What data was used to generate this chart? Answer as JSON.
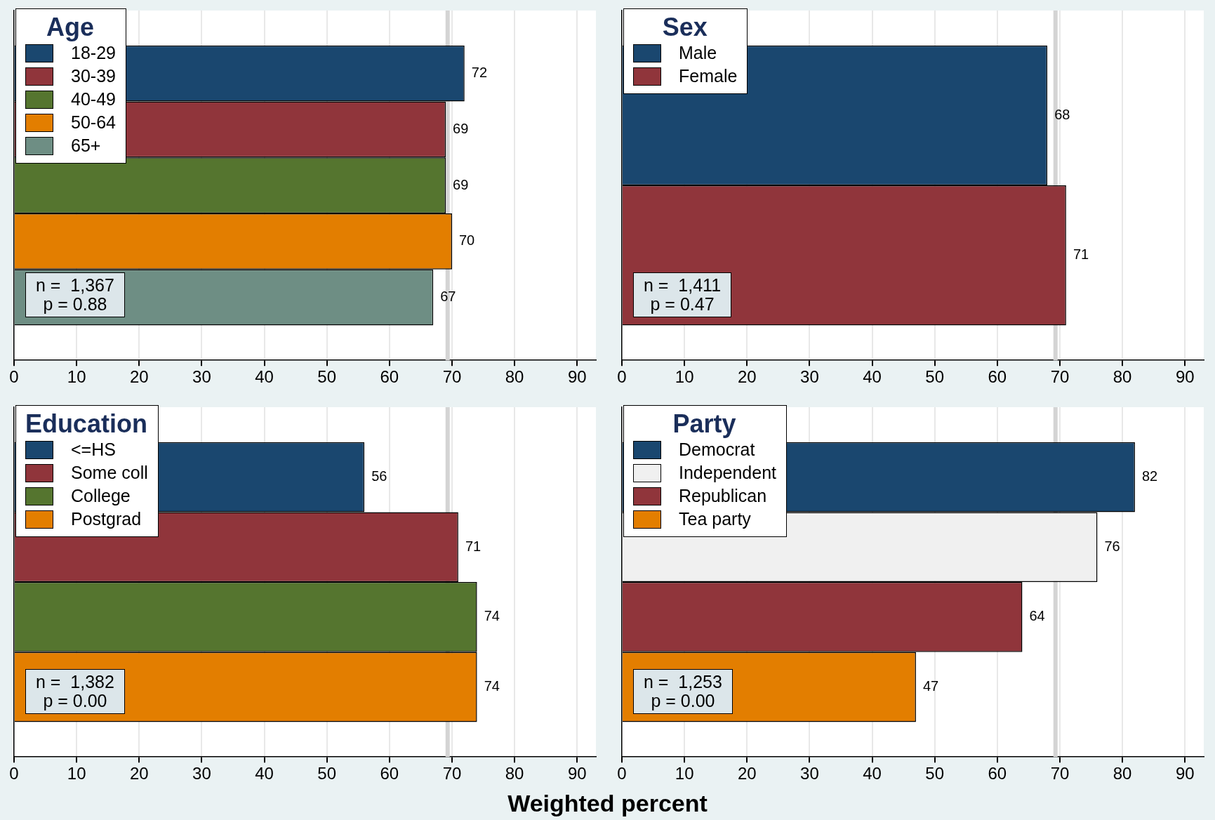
{
  "chart_data": [
    {
      "type": "bar",
      "orientation": "horizontal",
      "legend_title": "Age",
      "legend": "top left",
      "categories": [
        null
      ],
      "xlim": [
        0,
        93
      ],
      "xticks": [
        0,
        10,
        20,
        30,
        40,
        50,
        60,
        70,
        80,
        90
      ],
      "grid": "x",
      "data_labels": true,
      "ref_lines": [
        {
          "axis": "x",
          "value": 69.3,
          "color": "#d4d4d4"
        }
      ],
      "annotations": [
        "n =  1,367",
        "p = 0.88"
      ],
      "series": [
        {
          "name": "18-29",
          "color": "#1a476f",
          "values": [
            72
          ]
        },
        {
          "name": "30-39",
          "color": "#90353b",
          "values": [
            69
          ]
        },
        {
          "name": "40-49",
          "color": "#55752f",
          "values": [
            69
          ]
        },
        {
          "name": "50-64",
          "color": "#e37e00",
          "values": [
            70
          ]
        },
        {
          "name": "65+",
          "color": "#6e8e84",
          "values": [
            67
          ]
        }
      ]
    },
    {
      "type": "bar",
      "orientation": "horizontal",
      "legend_title": "Sex",
      "legend": "top left",
      "categories": [
        null
      ],
      "xlim": [
        0,
        93
      ],
      "xticks": [
        0,
        10,
        20,
        30,
        40,
        50,
        60,
        70,
        80,
        90
      ],
      "grid": "x",
      "data_labels": true,
      "ref_lines": [
        {
          "axis": "x",
          "value": 69.3,
          "color": "#d4d4d4"
        }
      ],
      "annotations": [
        "n =  1,411",
        "p = 0.47"
      ],
      "series": [
        {
          "name": "Male",
          "color": "#1a476f",
          "values": [
            68
          ]
        },
        {
          "name": "Female",
          "color": "#90353b",
          "values": [
            71
          ]
        }
      ]
    },
    {
      "type": "bar",
      "orientation": "horizontal",
      "legend_title": "Education",
      "legend": "top left",
      "categories": [
        null
      ],
      "xlim": [
        0,
        93
      ],
      "xticks": [
        0,
        10,
        20,
        30,
        40,
        50,
        60,
        70,
        80,
        90
      ],
      "grid": "x",
      "data_labels": true,
      "ref_lines": [
        {
          "axis": "x",
          "value": 69.3,
          "color": "#d4d4d4"
        }
      ],
      "annotations": [
        "n =  1,382",
        "p = 0.00"
      ],
      "xlabel": "Weighted percent",
      "series": [
        {
          "name": "<=HS",
          "color": "#1a476f",
          "values": [
            56
          ]
        },
        {
          "name": "Some coll",
          "color": "#90353b",
          "values": [
            71
          ]
        },
        {
          "name": "College",
          "color": "#55752f",
          "values": [
            74
          ]
        },
        {
          "name": "Postgrad",
          "color": "#e37e00",
          "values": [
            74
          ]
        }
      ]
    },
    {
      "type": "bar",
      "orientation": "horizontal",
      "legend_title": "Party",
      "legend": "top left",
      "categories": [
        null
      ],
      "xlim": [
        0,
        93
      ],
      "xticks": [
        0,
        10,
        20,
        30,
        40,
        50,
        60,
        70,
        80,
        90
      ],
      "grid": "x",
      "data_labels": true,
      "ref_lines": [
        {
          "axis": "x",
          "value": 69.3,
          "color": "#d4d4d4"
        }
      ],
      "annotations": [
        "n =  1,253",
        "p = 0.00"
      ],
      "series": [
        {
          "name": "Democrat",
          "color": "#1a476f",
          "values": [
            82
          ]
        },
        {
          "name": "Independent",
          "color": "#f0f0f0",
          "values": [
            76
          ]
        },
        {
          "name": "Republican",
          "color": "#90353b",
          "values": [
            64
          ]
        },
        {
          "name": "Tea party",
          "color": "#e37e00",
          "values": [
            47
          ]
        }
      ]
    }
  ]
}
